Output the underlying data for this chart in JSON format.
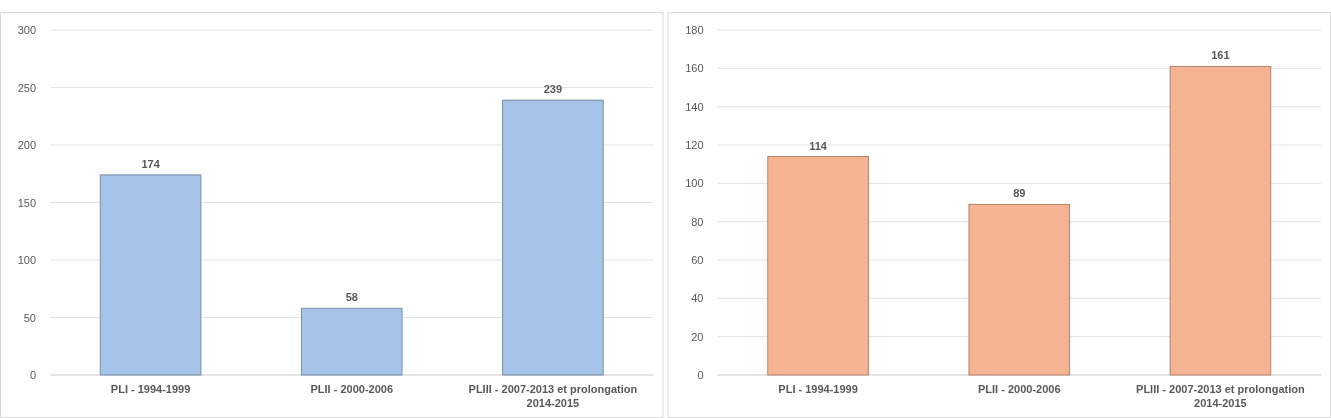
{
  "chart_data": [
    {
      "type": "bar",
      "categories": [
        "PLI - 1994-1999",
        "PLII - 2000-2006",
        "PLIII - 2007-2013 et prolongation 2014-2015"
      ],
      "values": [
        174,
        58,
        239
      ],
      "color": "#a6c4e8",
      "ylim": [
        0,
        300
      ],
      "yticks": [
        0,
        50,
        100,
        150,
        200,
        250,
        300
      ],
      "grid": "y",
      "data_labels": true
    },
    {
      "type": "bar",
      "categories": [
        "PLI - 1994-1999",
        "PLII - 2000-2006",
        "PLIII - 2007-2013 et prolongation 2014-2015"
      ],
      "values": [
        114,
        89,
        161
      ],
      "color": "#f6b393",
      "ylim": [
        0,
        180
      ],
      "yticks": [
        0,
        20,
        40,
        60,
        80,
        100,
        120,
        140,
        160,
        180
      ],
      "grid": "y",
      "data_labels": true
    }
  ]
}
